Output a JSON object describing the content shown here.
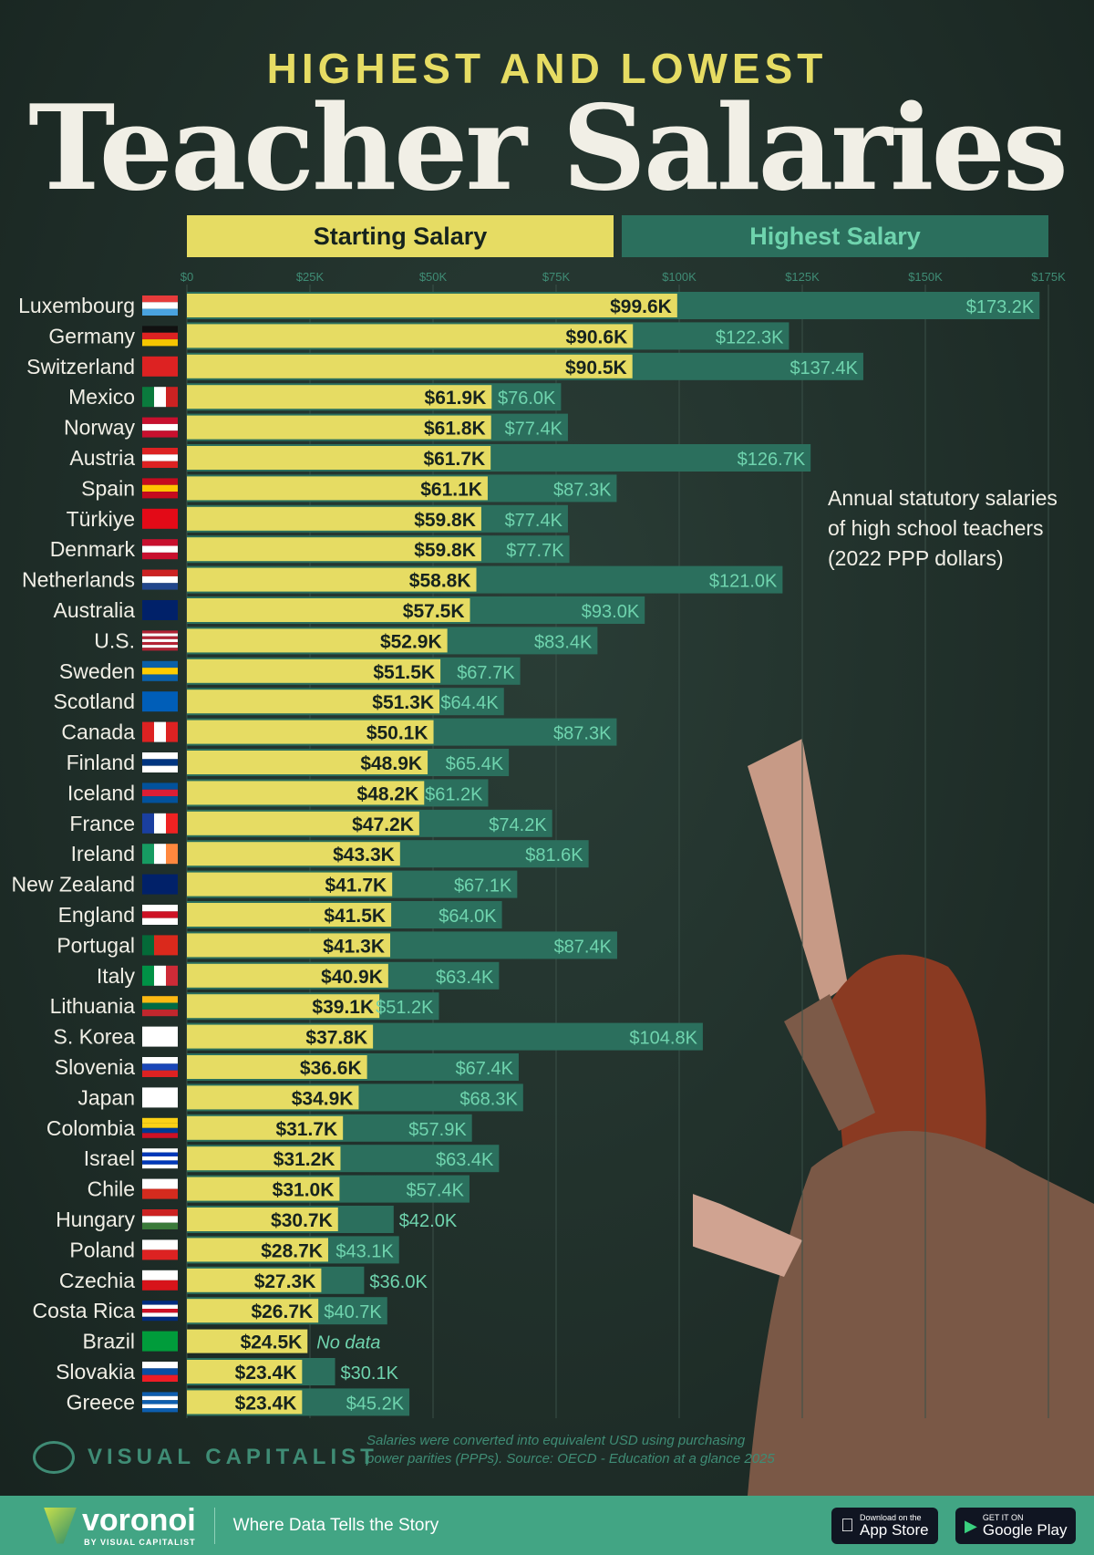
{
  "header": {
    "supertitle": "HIGHEST AND LOWEST",
    "title": "Teacher Salaries"
  },
  "legend": {
    "starting": "Starting Salary",
    "highest": "Highest Salary"
  },
  "note": [
    "Annual statutory salaries",
    "of high school teachers",
    "(2022 PPP dollars)"
  ],
  "source": [
    "Salaries were converted into equivalent USD using purchasing",
    "power parities (PPPs). Source: OECD - Education at a glance 2025"
  ],
  "brand": "VISUAL CAPITALIST",
  "footer": {
    "brand": "voronoi",
    "brand_sub": "BY VISUAL CAPITALIST",
    "tagline": "Where Data Tells the Story",
    "app_store": "App Store",
    "app_store_pre": "Download on the",
    "google_play": "Google Play",
    "google_play_pre": "GET IT ON"
  },
  "colors": {
    "starting": "#e6dc63",
    "highest": "#2b6f5d",
    "highest_text": "#6fd4ae",
    "background": "#1f2f29"
  },
  "chart_data": {
    "type": "bar",
    "orientation": "horizontal",
    "stacked": "overlay",
    "xlim": [
      0,
      175
    ],
    "x_ticks": [
      "$0",
      "$25K",
      "$50K",
      "$75K",
      "$100K",
      "$125K",
      "$150K",
      "$175K"
    ],
    "grid": true,
    "legend": "top",
    "categories": [
      "Luxembourg",
      "Germany",
      "Switzerland",
      "Mexico",
      "Norway",
      "Austria",
      "Spain",
      "Türkiye",
      "Denmark",
      "Netherlands",
      "Australia",
      "U.S.",
      "Sweden",
      "Scotland",
      "Canada",
      "Finland",
      "Iceland",
      "France",
      "Ireland",
      "New Zealand",
      "England",
      "Portugal",
      "Italy",
      "Lithuania",
      "S. Korea",
      "Slovenia",
      "Japan",
      "Colombia",
      "Israel",
      "Chile",
      "Hungary",
      "Poland",
      "Czechia",
      "Costa Rica",
      "Brazil",
      "Slovakia",
      "Greece"
    ],
    "series": [
      {
        "name": "Starting Salary",
        "unit": "$K",
        "values": [
          99.6,
          90.6,
          90.5,
          61.9,
          61.8,
          61.7,
          61.1,
          59.8,
          59.8,
          58.8,
          57.5,
          52.9,
          51.5,
          51.3,
          50.1,
          48.9,
          48.2,
          47.2,
          43.3,
          41.7,
          41.5,
          41.3,
          40.9,
          39.1,
          37.8,
          36.6,
          34.9,
          31.7,
          31.2,
          31.0,
          30.7,
          28.7,
          27.3,
          26.7,
          24.5,
          23.4,
          23.4
        ]
      },
      {
        "name": "Highest Salary",
        "unit": "$K",
        "values": [
          173.2,
          122.3,
          137.4,
          76.0,
          77.4,
          126.7,
          87.3,
          77.4,
          77.7,
          121.0,
          93.0,
          83.4,
          67.7,
          64.4,
          87.3,
          65.4,
          61.2,
          74.2,
          81.6,
          67.1,
          64.0,
          87.4,
          63.4,
          51.2,
          104.8,
          67.4,
          68.3,
          57.9,
          63.4,
          57.4,
          42.0,
          43.1,
          36.0,
          40.7,
          null,
          30.1,
          45.2
        ]
      }
    ],
    "no_data_label": "No data"
  }
}
